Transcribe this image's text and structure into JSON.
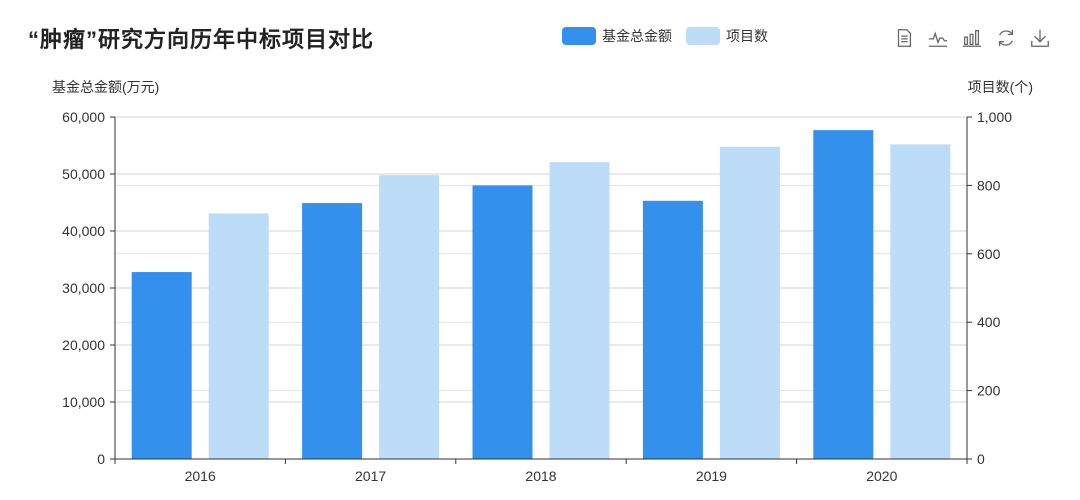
{
  "title": "“肿瘤”研究方向历年中标项目对比",
  "legend": [
    {
      "name": "基金总金额",
      "color": "#3391ed"
    },
    {
      "name": "项目数",
      "color": "#bcdcf8"
    }
  ],
  "toolbox": [
    {
      "icon": "data-view-icon"
    },
    {
      "icon": "line-chart-icon"
    },
    {
      "icon": "bar-chart-icon"
    },
    {
      "icon": "restore-icon"
    },
    {
      "icon": "download-icon"
    }
  ],
  "chart_data": {
    "type": "bar",
    "categories": [
      "2016",
      "2017",
      "2018",
      "2019",
      "2020"
    ],
    "series": [
      {
        "name": "基金总金额",
        "axis": "left",
        "color": "#3391ed",
        "values": [
          32800,
          44900,
          48000,
          45300,
          57700
        ]
      },
      {
        "name": "项目数",
        "axis": "right",
        "color": "#bcdcf8",
        "values": [
          718,
          830,
          868,
          913,
          920
        ]
      }
    ],
    "y_left": {
      "label": "基金总金额(万元)",
      "min": 0,
      "max": 60000,
      "ticks": [
        "0",
        "10,000",
        "20,000",
        "30,000",
        "40,000",
        "50,000",
        "60,000"
      ]
    },
    "y_right": {
      "label": "项目数(个)",
      "min": 0,
      "max": 1000,
      "ticks": [
        "0",
        "200",
        "400",
        "600",
        "800",
        "1,000"
      ]
    },
    "grid": true
  }
}
